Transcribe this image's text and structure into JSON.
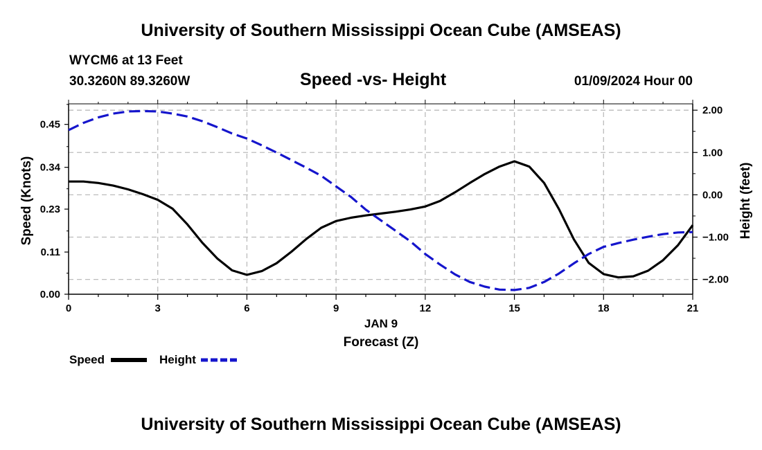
{
  "header": {
    "title": "University of Southern Mississippi Ocean Cube (AMSEAS)",
    "station": "WYCM6 at 13 Feet",
    "location": "30.3260N  89.3260W",
    "date": "01/09/2024 Hour 00"
  },
  "footer": {
    "title": "University of Southern Mississippi Ocean Cube (AMSEAS)"
  },
  "colors": {
    "speed": "#000000",
    "height": "#1515cc",
    "grid": "#bbbbbb"
  },
  "chart_data": {
    "type": "line",
    "title": "Speed -vs- Height",
    "xlabel_date": "JAN 9",
    "xlabel": "Forecast (Z)",
    "ylabel": "Speed (Knots)",
    "y2label": "Height (feet)",
    "xlim": [
      0,
      21
    ],
    "ylim": [
      0,
      0.51
    ],
    "y2lim": [
      -2.35,
      2.15
    ],
    "grid": true,
    "x_ticks": [
      0,
      3,
      6,
      9,
      12,
      15,
      18,
      21
    ],
    "x_tick_labels": [
      "0",
      "3",
      "6",
      "9",
      "12",
      "15",
      "18",
      "21"
    ],
    "y_ticks": [
      0,
      0.113,
      0.228,
      0.34,
      0.455
    ],
    "y_tick_labels": [
      "0.00",
      "0.11",
      "0.23",
      "0.34",
      "0.45"
    ],
    "y2_ticks": [
      2,
      1,
      0,
      -1,
      -2
    ],
    "y2_tick_labels": [
      "2.00",
      "1.00",
      "0.00",
      "−1.00",
      "−2.00"
    ],
    "legend": {
      "placement": "bottom-left",
      "entries": [
        "Speed",
        "Height"
      ]
    },
    "series": [
      {
        "name": "Speed",
        "axis": "left",
        "style": "solid",
        "x": [
          0,
          0.5,
          1,
          1.5,
          2,
          2.5,
          3,
          3.5,
          4,
          4.5,
          5,
          5.5,
          6,
          6.5,
          7,
          7.5,
          8,
          8.5,
          9,
          9.5,
          10,
          10.5,
          11,
          11.5,
          12,
          12.5,
          13,
          13.5,
          14,
          14.5,
          15,
          15.5,
          16,
          16.5,
          17,
          17.5,
          18,
          18.5,
          19,
          19.5,
          20,
          20.5,
          21
        ],
        "values": [
          0.302,
          0.302,
          0.298,
          0.291,
          0.281,
          0.268,
          0.253,
          0.229,
          0.187,
          0.138,
          0.096,
          0.064,
          0.052,
          0.062,
          0.083,
          0.114,
          0.148,
          0.178,
          0.196,
          0.205,
          0.211,
          0.216,
          0.221,
          0.227,
          0.235,
          0.25,
          0.273,
          0.298,
          0.322,
          0.342,
          0.356,
          0.342,
          0.298,
          0.228,
          0.147,
          0.084,
          0.054,
          0.045,
          0.048,
          0.063,
          0.091,
          0.131,
          0.185
        ]
      },
      {
        "name": "Height",
        "axis": "right",
        "style": "dashed",
        "x": [
          0,
          0.5,
          1,
          1.5,
          2,
          2.5,
          3,
          3.5,
          4,
          4.5,
          5,
          5.5,
          6,
          6.5,
          7,
          7.5,
          8,
          8.5,
          9,
          9.5,
          10,
          10.5,
          11,
          11.5,
          12,
          12.5,
          13,
          13.5,
          14,
          14.5,
          15,
          15.5,
          16,
          16.5,
          17,
          17.5,
          18,
          18.5,
          19,
          19.5,
          20,
          20.5,
          21
        ],
        "values": [
          1.53,
          1.7,
          1.83,
          1.92,
          1.97,
          1.98,
          1.97,
          1.92,
          1.85,
          1.74,
          1.6,
          1.45,
          1.33,
          1.17,
          1.0,
          0.82,
          0.64,
          0.45,
          0.2,
          -0.05,
          -0.35,
          -0.6,
          -0.85,
          -1.1,
          -1.4,
          -1.65,
          -1.88,
          -2.06,
          -2.17,
          -2.24,
          -2.25,
          -2.2,
          -2.06,
          -1.86,
          -1.62,
          -1.4,
          -1.23,
          -1.14,
          -1.06,
          -0.99,
          -0.93,
          -0.89,
          -0.88
        ]
      }
    ]
  }
}
